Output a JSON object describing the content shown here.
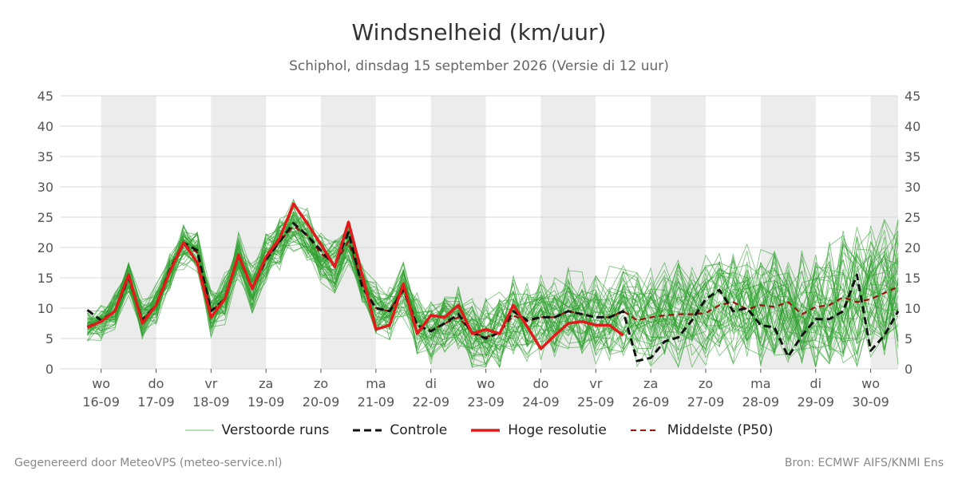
{
  "title": "Windsnelheid (km/uur)",
  "subtitle": "Schiphol, dinsdag 15 september 2026 (Versie di 12 uur)",
  "footer_left": "Gegenereerd door MeteoVPS (meteo-service.nl)",
  "footer_right": "Bron: ECMWF AIFS/KNMI Ens",
  "colors": {
    "ensemble": "#2ca02c",
    "control": "#111111",
    "high_res": "#e31a1c",
    "median": "#9b1111",
    "band": "#ececec",
    "grid": "#d9d9d9"
  },
  "legend": {
    "ensemble": "Verstoorde runs",
    "control": "Controle",
    "high_res": "Hoge resolutie",
    "median": "Middelste (P50)"
  },
  "chart_data": {
    "type": "line",
    "x_unit": "days from 16-09 00:00",
    "xlim": [
      -0.75,
      14.5
    ],
    "ylim": [
      0,
      45
    ],
    "yticks": [
      0,
      5,
      10,
      15,
      20,
      25,
      30,
      35,
      40,
      45
    ],
    "grid": true,
    "legend_position": "bottom",
    "day_ticks": [
      {
        "day": "wo",
        "date": "16-09"
      },
      {
        "day": "do",
        "date": "17-09"
      },
      {
        "day": "vr",
        "date": "18-09"
      },
      {
        "day": "za",
        "date": "19-09"
      },
      {
        "day": "zo",
        "date": "20-09"
      },
      {
        "day": "ma",
        "date": "21-09"
      },
      {
        "day": "di",
        "date": "22-09"
      },
      {
        "day": "wo",
        "date": "23-09"
      },
      {
        "day": "do",
        "date": "24-09"
      },
      {
        "day": "vr",
        "date": "25-09"
      },
      {
        "day": "za",
        "date": "26-09"
      },
      {
        "day": "zo",
        "date": "27-09"
      },
      {
        "day": "ma",
        "date": "28-09"
      },
      {
        "day": "di",
        "date": "29-09"
      },
      {
        "day": "wo",
        "date": "30-09"
      }
    ],
    "shaded_days": [
      0,
      2,
      4,
      6,
      8,
      10,
      12,
      14
    ],
    "series": [
      {
        "name": "Hoge resolutie",
        "role": "high_res",
        "x": [
          -0.25,
          0,
          0.25,
          0.5,
          0.75,
          1,
          1.25,
          1.5,
          1.75,
          2,
          2.25,
          2.5,
          2.75,
          3,
          3.25,
          3.5,
          3.75,
          4,
          4.25,
          4.5,
          4.75,
          5,
          5.25,
          5.5,
          5.75,
          6,
          6.25,
          6.5,
          6.75,
          7,
          7.25,
          7.5,
          7.75,
          8,
          8.25,
          8.5,
          8.75,
          9,
          9.25,
          9.5
        ],
        "values": [
          6.8,
          7.8,
          9.5,
          15.5,
          7.5,
          10.5,
          16,
          20.8,
          17.5,
          8.5,
          11.5,
          18.8,
          13.2,
          18.5,
          21.5,
          27.2,
          24,
          20.5,
          16.8,
          24.2,
          15.5,
          6.5,
          7.2,
          14,
          5.8,
          8.8,
          8.5,
          10.5,
          5.8,
          6.5,
          5.8,
          10.5,
          7,
          3.3,
          5.5,
          7.5,
          7.8,
          7.2,
          7.2,
          5.5
        ]
      },
      {
        "name": "Controle",
        "role": "control",
        "x": [
          -0.25,
          0,
          0.25,
          0.5,
          0.75,
          1,
          1.25,
          1.5,
          1.75,
          2,
          2.25,
          2.5,
          2.75,
          3,
          3.25,
          3.5,
          3.75,
          4,
          4.25,
          4.5,
          4.75,
          5,
          5.25,
          5.5,
          5.75,
          6,
          6.25,
          6.5,
          6.75,
          7,
          7.25,
          7.5,
          7.75,
          8,
          8.25,
          8.5,
          8.75,
          9,
          9.25,
          9.5,
          9.75,
          10,
          10.25,
          10.5,
          10.75,
          11,
          11.25,
          11.5,
          11.75,
          12,
          12.25,
          12.5,
          12.75,
          13,
          13.25,
          13.5,
          13.75,
          14,
          14.25,
          14.5
        ],
        "values": [
          9.7,
          8,
          9.5,
          15,
          8,
          10.5,
          16.3,
          20.8,
          19.5,
          9.5,
          11.5,
          18.7,
          13.2,
          18,
          21,
          24,
          22,
          19.5,
          17,
          22.5,
          13.5,
          10,
          9.5,
          13,
          7.2,
          6.2,
          7.5,
          9,
          6,
          5,
          6,
          9.5,
          8,
          8.5,
          8.5,
          9.5,
          9,
          8.5,
          8.5,
          9.5,
          1.3,
          1.8,
          4.5,
          5.2,
          8,
          11.5,
          13,
          9.5,
          10,
          7.2,
          6.8,
          2,
          5.5,
          8.2,
          8.2,
          9.5,
          15.5,
          3,
          5.5,
          9.5
        ]
      },
      {
        "name": "Middelste (P50)",
        "role": "median",
        "x": [
          -0.25,
          0,
          0.25,
          0.5,
          0.75,
          1,
          1.25,
          1.5,
          1.75,
          2,
          2.25,
          2.5,
          2.75,
          3,
          3.25,
          3.5,
          3.75,
          4,
          4.25,
          4.5,
          4.75,
          5,
          5.25,
          5.5,
          5.75,
          6,
          6.25,
          6.5,
          6.75,
          7,
          7.25,
          7.5,
          7.75,
          8,
          8.25,
          8.5,
          8.75,
          9,
          9.25,
          9.5,
          9.75,
          10,
          10.25,
          10.5,
          10.75,
          11,
          11.25,
          11.5,
          11.75,
          12,
          12.25,
          12.5,
          12.75,
          13,
          13.25,
          13.5,
          13.75,
          14,
          14.25,
          14.5
        ],
        "values": [
          7,
          7.8,
          9.5,
          15,
          8,
          10.5,
          16,
          20.5,
          19.2,
          9.5,
          11.5,
          18.5,
          13.3,
          18.2,
          21,
          23.5,
          22,
          19,
          17.2,
          21,
          14,
          10,
          9.5,
          13.5,
          7.2,
          6.3,
          7.5,
          8.5,
          6,
          5.2,
          6,
          8.8,
          7.8,
          8.5,
          8.5,
          9.5,
          9,
          8.5,
          8.5,
          9.5,
          8,
          8.5,
          8.8,
          9,
          9,
          9.2,
          10.5,
          11,
          9.8,
          10.5,
          10.2,
          11,
          9,
          10.2,
          10.5,
          11.8,
          11,
          11.5,
          12.5,
          13.5
        ]
      }
    ],
    "ensemble_count": 50
  }
}
